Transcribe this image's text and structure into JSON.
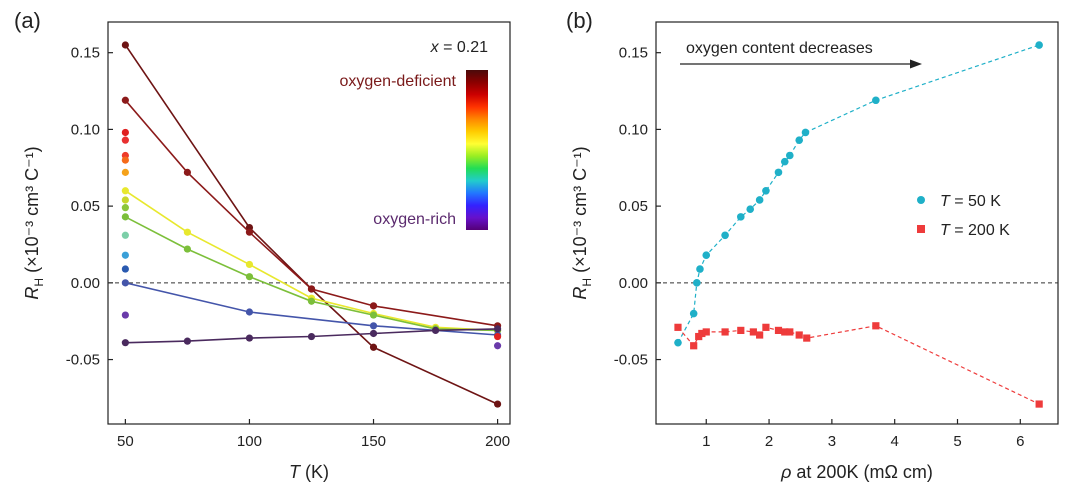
{
  "chart_data": [
    {
      "panel_label": "(a)",
      "type": "line",
      "xlabel": "T (K)",
      "xlabel_var": "T",
      "xlabel_unit": " (K)",
      "ylabel_var": "R",
      "ylabel_sub": "H",
      "ylabel_unit": "(×10⁻³ cm³ C⁻¹)",
      "xlim": [
        43,
        205
      ],
      "ylim": [
        -0.092,
        0.17
      ],
      "xticks": [
        50,
        100,
        150,
        200
      ],
      "yticks": [
        -0.05,
        0.0,
        0.05,
        0.1,
        0.15
      ],
      "ytick_labels": [
        "-0.05",
        "0.00",
        "0.05",
        "0.10",
        "0.15"
      ],
      "zero_line": true,
      "annotation_x_var": "x",
      "annotation_x_value": " = 0.21",
      "annotation_deficient": "oxygen-deficient",
      "annotation_rich": "oxygen-rich",
      "annotation_deficient_color": "#7a1a1a",
      "annotation_rich_color": "#5b2a6e",
      "colorbar_colors": [
        "#4a0a0a",
        "#8b0000",
        "#cc0000",
        "#ff3300",
        "#ff8800",
        "#ffcc00",
        "#ffff33",
        "#99ee22",
        "#22dd55",
        "#22cccc",
        "#2277ff",
        "#3322ff",
        "#6611cc",
        "#550077"
      ],
      "series": [
        {
          "color": "#6e1414",
          "x": [
            50,
            100,
            125,
            150,
            200
          ],
          "y": [
            0.155,
            0.036,
            -0.004,
            -0.042,
            -0.079
          ]
        },
        {
          "color": "#8c1a1a",
          "x": [
            50,
            75,
            100,
            125,
            150,
            200
          ],
          "y": [
            0.119,
            0.072,
            0.033,
            -0.004,
            -0.015,
            -0.028
          ]
        },
        {
          "color": "#e8e82e",
          "x": [
            50,
            75,
            100,
            125,
            150,
            175,
            200
          ],
          "y": [
            0.06,
            0.033,
            0.012,
            -0.01,
            -0.02,
            -0.029,
            -0.031
          ]
        },
        {
          "color": "#7cbf3a",
          "x": [
            50,
            75,
            100,
            125,
            150,
            175,
            200
          ],
          "y": [
            0.043,
            0.022,
            0.004,
            -0.012,
            -0.021,
            -0.03,
            -0.031
          ]
        },
        {
          "color": "#4455aa",
          "x": [
            50,
            100,
            150,
            200
          ],
          "y": [
            0.0,
            -0.019,
            -0.028,
            -0.034
          ]
        },
        {
          "color": "#4a2a5e",
          "x": [
            50,
            75,
            100,
            125,
            150,
            175,
            200
          ],
          "y": [
            -0.039,
            -0.038,
            -0.036,
            -0.035,
            -0.033,
            -0.031,
            -0.03
          ]
        }
      ],
      "points": [
        {
          "x": 50,
          "y": 0.098,
          "color": "#e02020"
        },
        {
          "x": 50,
          "y": 0.093,
          "color": "#e83030"
        },
        {
          "x": 50,
          "y": 0.083,
          "color": "#ee3b2b"
        },
        {
          "x": 50,
          "y": 0.08,
          "color": "#f56a1a"
        },
        {
          "x": 50,
          "y": 0.072,
          "color": "#f5a21a"
        },
        {
          "x": 50,
          "y": 0.054,
          "color": "#c8d62a"
        },
        {
          "x": 50,
          "y": 0.049,
          "color": "#8cc63a"
        },
        {
          "x": 50,
          "y": 0.031,
          "color": "#7ccfa8"
        },
        {
          "x": 50,
          "y": 0.018,
          "color": "#3aa0d8"
        },
        {
          "x": 50,
          "y": 0.009,
          "color": "#2a5ab0"
        },
        {
          "x": 50,
          "y": -0.021,
          "color": "#6a3aaa"
        },
        {
          "x": 200,
          "y": -0.035,
          "color": "#e02020"
        },
        {
          "x": 200,
          "y": -0.041,
          "color": "#6a3aaa"
        }
      ]
    },
    {
      "panel_label": "(b)",
      "type": "scatter",
      "xlabel_var": "ρ",
      "xlabel_rest": " at 200K (mΩ cm)",
      "ylabel_var": "R",
      "ylabel_sub": "H",
      "ylabel_unit": "(×10⁻³ cm³ C⁻¹)",
      "xlim": [
        0.2,
        6.6
      ],
      "ylim": [
        -0.092,
        0.17
      ],
      "xticks": [
        1,
        2,
        3,
        4,
        5,
        6
      ],
      "yticks": [
        -0.05,
        0.0,
        0.05,
        0.1,
        0.15
      ],
      "ytick_labels": [
        "-0.05",
        "0.00",
        "0.05",
        "0.10",
        "0.15"
      ],
      "zero_line": true,
      "arrow_text": "oxygen content decreases",
      "legend_position": "right",
      "series": [
        {
          "legend_var": "T",
          "legend_rest": " = 50 K",
          "marker": "circle",
          "color": "#1fb0c8",
          "x": [
            0.55,
            0.8,
            0.85,
            0.9,
            1.0,
            1.3,
            1.55,
            1.7,
            1.85,
            1.95,
            2.15,
            2.25,
            2.33,
            2.48,
            2.58,
            3.7,
            6.3
          ],
          "y": [
            -0.039,
            -0.02,
            0.0,
            0.009,
            0.018,
            0.031,
            0.043,
            0.048,
            0.054,
            0.06,
            0.072,
            0.079,
            0.083,
            0.093,
            0.098,
            0.119,
            0.155
          ]
        },
        {
          "legend_var": "T",
          "legend_rest": " = 200 K",
          "marker": "square",
          "color": "#ee3b3b",
          "x": [
            0.55,
            0.8,
            0.88,
            0.93,
            1.0,
            1.3,
            1.55,
            1.75,
            1.85,
            1.95,
            2.15,
            2.25,
            2.33,
            2.48,
            2.6,
            3.7,
            6.3
          ],
          "y": [
            -0.029,
            -0.041,
            -0.035,
            -0.033,
            -0.032,
            -0.032,
            -0.031,
            -0.032,
            -0.034,
            -0.029,
            -0.031,
            -0.032,
            -0.032,
            -0.034,
            -0.036,
            -0.028,
            -0.079
          ]
        }
      ]
    }
  ]
}
